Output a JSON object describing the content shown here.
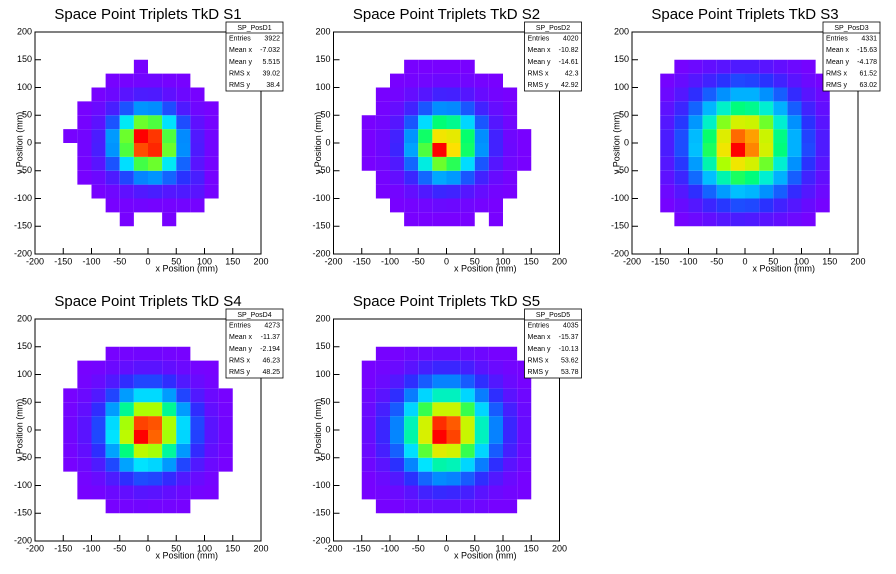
{
  "palette": [
    "#7a00ff",
    "#2a30ff",
    "#0090ff",
    "#00e8ff",
    "#00ff70",
    "#b0ff00",
    "#ffe000",
    "#ff0000"
  ],
  "chart_data": [
    {
      "type": "heatmap",
      "title": "Space Point Triplets TkD S1",
      "xlabel": "x Position (mm)",
      "ylabel": "y Position (mm)",
      "xlim": [
        -200,
        200
      ],
      "ylim": [
        -200,
        200
      ],
      "xticks": [
        -200,
        -150,
        -100,
        -50,
        0,
        50,
        100,
        150,
        200
      ],
      "yticks": [
        -200,
        -150,
        -100,
        -50,
        0,
        50,
        100,
        150,
        200
      ],
      "xbins": [
        -150,
        -125,
        -100,
        -75,
        -50,
        -25,
        0,
        25,
        50,
        75,
        100,
        125,
        150
      ],
      "ybins": [
        -150,
        -125,
        -100,
        -75,
        -50,
        -25,
        0,
        25,
        50,
        75,
        100,
        125,
        150
      ],
      "z": [
        [
          0,
          0,
          0,
          0,
          1,
          0,
          0,
          1,
          0,
          0,
          0,
          0
        ],
        [
          0,
          0,
          0,
          1,
          2,
          3,
          2,
          2,
          3,
          2,
          0,
          0
        ],
        [
          0,
          0,
          1,
          4,
          10,
          15,
          18,
          14,
          16,
          12,
          2,
          0
        ],
        [
          0,
          1,
          5,
          16,
          36,
          55,
          60,
          45,
          30,
          18,
          2,
          0
        ],
        [
          0,
          2,
          12,
          40,
          85,
          128,
          135,
          90,
          45,
          12,
          2,
          0
        ],
        [
          0,
          3,
          18,
          60,
          130,
          195,
          200,
          135,
          58,
          16,
          3,
          0
        ],
        [
          1,
          3,
          17,
          62,
          135,
          205,
          198,
          130,
          57,
          15,
          3,
          0
        ],
        [
          0,
          2,
          11,
          40,
          90,
          135,
          130,
          86,
          38,
          10,
          2,
          0
        ],
        [
          0,
          1,
          6,
          18,
          40,
          60,
          58,
          38,
          16,
          4,
          1,
          0
        ],
        [
          0,
          0,
          1,
          5,
          12,
          17,
          16,
          10,
          5,
          1,
          0,
          0
        ],
        [
          0,
          0,
          0,
          1,
          2,
          3,
          4,
          2,
          1,
          0,
          0,
          0
        ],
        [
          0,
          0,
          0,
          0,
          0,
          1,
          0,
          0,
          0,
          0,
          0,
          0
        ]
      ],
      "stats": {
        "title": "SP_PosD1",
        "rows": [
          {
            "label": "Entries",
            "value": 3922
          },
          {
            "label": "Mean x",
            "value": -7.032
          },
          {
            "label": "Mean y",
            "value": 5.515
          },
          {
            "label": "RMS x",
            "value": 39.02
          },
          {
            "label": "RMS y",
            "value": 38.4
          }
        ]
      }
    },
    {
      "type": "heatmap",
      "title": "Space Point Triplets TkD S2",
      "xlabel": "x Position (mm)",
      "ylabel": "y Position (mm)",
      "xlim": [
        -200,
        200
      ],
      "ylim": [
        -200,
        200
      ],
      "xticks": [
        -200,
        -150,
        -100,
        -50,
        0,
        50,
        100,
        150,
        200
      ],
      "yticks": [
        -200,
        -150,
        -100,
        -50,
        0,
        50,
        100,
        150,
        200
      ],
      "xbins": [
        -150,
        -125,
        -100,
        -75,
        -50,
        -25,
        0,
        25,
        50,
        75,
        100,
        125,
        150
      ],
      "ybins": [
        -150,
        -125,
        -100,
        -75,
        -50,
        -25,
        0,
        25,
        50,
        75,
        100,
        125,
        150
      ],
      "z": [
        [
          0,
          0,
          0,
          1,
          1,
          1,
          1,
          1,
          0,
          1,
          0,
          0
        ],
        [
          0,
          0,
          1,
          2,
          4,
          7,
          6,
          4,
          2,
          1,
          0,
          0
        ],
        [
          0,
          1,
          3,
          10,
          18,
          27,
          25,
          16,
          9,
          3,
          1,
          0
        ],
        [
          0,
          2,
          10,
          27,
          54,
          78,
          72,
          48,
          24,
          8,
          2,
          0
        ],
        [
          1,
          4,
          18,
          54,
          110,
          158,
          145,
          98,
          48,
          16,
          4,
          1
        ],
        [
          1,
          6,
          26,
          76,
          152,
          240,
          205,
          140,
          70,
          24,
          6,
          1
        ],
        [
          1,
          6,
          24,
          70,
          140,
          200,
          195,
          138,
          68,
          24,
          5,
          1
        ],
        [
          1,
          4,
          16,
          48,
          98,
          136,
          130,
          96,
          48,
          16,
          4,
          0
        ],
        [
          0,
          2,
          9,
          24,
          48,
          68,
          66,
          48,
          24,
          9,
          2,
          0
        ],
        [
          0,
          1,
          3,
          9,
          16,
          24,
          23,
          16,
          8,
          3,
          1,
          0
        ],
        [
          0,
          0,
          1,
          2,
          4,
          6,
          6,
          4,
          2,
          1,
          0,
          0
        ],
        [
          0,
          0,
          0,
          1,
          1,
          1,
          1,
          1,
          0,
          0,
          0,
          0
        ]
      ],
      "stats": {
        "title": "SP_PosD2",
        "rows": [
          {
            "label": "Entries",
            "value": 4020
          },
          {
            "label": "Mean x",
            "value": -10.82
          },
          {
            "label": "Mean y",
            "value": -14.61
          },
          {
            "label": "RMS x",
            "value": 42.3
          },
          {
            "label": "RMS y",
            "value": 42.92
          }
        ]
      }
    },
    {
      "type": "heatmap",
      "title": "Space Point Triplets TkD S3",
      "xlabel": "x Position (mm)",
      "ylabel": "y Position (mm)",
      "xlim": [
        -200,
        200
      ],
      "ylim": [
        -200,
        200
      ],
      "xticks": [
        -200,
        -150,
        -100,
        -50,
        0,
        50,
        100,
        150,
        200
      ],
      "yticks": [
        -200,
        -150,
        -100,
        -50,
        0,
        50,
        100,
        150,
        200
      ],
      "xbins": [
        -150,
        -125,
        -100,
        -75,
        -50,
        -25,
        0,
        25,
        50,
        75,
        100,
        125,
        150
      ],
      "ybins": [
        -150,
        -125,
        -100,
        -75,
        -50,
        -25,
        0,
        25,
        50,
        75,
        100,
        125,
        150
      ],
      "z": [
        [
          0,
          1,
          3,
          5,
          8,
          10,
          9,
          7,
          5,
          3,
          1,
          0
        ],
        [
          1,
          4,
          8,
          13,
          18,
          22,
          21,
          17,
          12,
          8,
          4,
          1
        ],
        [
          3,
          8,
          16,
          26,
          36,
          43,
          41,
          34,
          25,
          15,
          8,
          3
        ],
        [
          6,
          13,
          27,
          43,
          60,
          70,
          66,
          56,
          40,
          25,
          12,
          5
        ],
        [
          8,
          18,
          36,
          60,
          84,
          98,
          92,
          78,
          56,
          34,
          17,
          7
        ],
        [
          10,
          22,
          43,
          70,
          98,
          118,
          108,
          92,
          66,
          40,
          21,
          9
        ],
        [
          10,
          22,
          42,
          68,
          94,
          110,
          106,
          90,
          65,
          40,
          20,
          9
        ],
        [
          8,
          18,
          35,
          57,
          80,
          92,
          90,
          78,
          56,
          34,
          17,
          7
        ],
        [
          6,
          13,
          26,
          41,
          57,
          66,
          64,
          56,
          40,
          25,
          12,
          5
        ],
        [
          3,
          8,
          16,
          25,
          34,
          40,
          40,
          34,
          25,
          15,
          7,
          3
        ],
        [
          1,
          4,
          8,
          12,
          17,
          21,
          20,
          17,
          12,
          7,
          3,
          1
        ],
        [
          0,
          1,
          3,
          5,
          7,
          9,
          9,
          7,
          5,
          3,
          1,
          0
        ]
      ],
      "stats": {
        "title": "SP_PosD3",
        "rows": [
          {
            "label": "Entries",
            "value": 4331
          },
          {
            "label": "Mean x",
            "value": -15.63
          },
          {
            "label": "Mean y",
            "value": -4.178
          },
          {
            "label": "RMS x",
            "value": 61.52
          },
          {
            "label": "RMS y",
            "value": 63.02
          }
        ]
      }
    },
    {
      "type": "heatmap",
      "title": "Space Point Triplets TkD S4",
      "xlabel": "x Position (mm)",
      "ylabel": "y Position (mm)",
      "xlim": [
        -200,
        200
      ],
      "ylim": [
        -200,
        200
      ],
      "xticks": [
        -200,
        -150,
        -100,
        -50,
        0,
        50,
        100,
        150,
        200
      ],
      "yticks": [
        -200,
        -150,
        -100,
        -50,
        0,
        50,
        100,
        150,
        200
      ],
      "xbins": [
        -150,
        -125,
        -100,
        -75,
        -50,
        -25,
        0,
        25,
        50,
        75,
        100,
        125,
        150
      ],
      "ybins": [
        -150,
        -125,
        -100,
        -75,
        -50,
        -25,
        0,
        25,
        50,
        75,
        100,
        125,
        150
      ],
      "z": [
        [
          0,
          0,
          0,
          1,
          2,
          3,
          2,
          2,
          1,
          0,
          0,
          0
        ],
        [
          0,
          1,
          2,
          5,
          8,
          12,
          11,
          8,
          5,
          2,
          1,
          0
        ],
        [
          0,
          2,
          6,
          15,
          26,
          35,
          33,
          24,
          14,
          6,
          2,
          0
        ],
        [
          1,
          5,
          15,
          34,
          60,
          80,
          76,
          57,
          33,
          14,
          5,
          1
        ],
        [
          2,
          8,
          26,
          60,
          106,
          140,
          134,
          100,
          57,
          24,
          8,
          2
        ],
        [
          3,
          11,
          34,
          80,
          140,
          190,
          178,
          134,
          76,
          32,
          11,
          3
        ],
        [
          3,
          11,
          33,
          77,
          134,
          182,
          180,
          135,
          77,
          33,
          11,
          3
        ],
        [
          2,
          8,
          25,
          58,
          102,
          135,
          135,
          102,
          58,
          25,
          8,
          2
        ],
        [
          1,
          5,
          14,
          33,
          58,
          77,
          77,
          58,
          33,
          14,
          5,
          1
        ],
        [
          0,
          2,
          6,
          14,
          25,
          33,
          33,
          25,
          14,
          6,
          2,
          0
        ],
        [
          0,
          1,
          2,
          5,
          8,
          11,
          11,
          8,
          5,
          2,
          1,
          0
        ],
        [
          0,
          0,
          0,
          1,
          2,
          3,
          3,
          2,
          1,
          0,
          0,
          0
        ]
      ],
      "stats": {
        "title": "SP_PosD4",
        "rows": [
          {
            "label": "Entries",
            "value": 4273
          },
          {
            "label": "Mean x",
            "value": -11.37
          },
          {
            "label": "Mean y",
            "value": -2.194
          },
          {
            "label": "RMS x",
            "value": 46.23
          },
          {
            "label": "RMS y",
            "value": 48.25
          }
        ]
      }
    },
    {
      "type": "heatmap",
      "title": "Space Point Triplets TkD S5",
      "xlabel": "x Position (mm)",
      "ylabel": "y Position (mm)",
      "xlim": [
        -200,
        200
      ],
      "ylim": [
        -200,
        200
      ],
      "xticks": [
        -200,
        -150,
        -100,
        -50,
        0,
        50,
        100,
        150,
        200
      ],
      "yticks": [
        -200,
        -150,
        -100,
        -50,
        0,
        50,
        100,
        150,
        200
      ],
      "xbins": [
        -150,
        -125,
        -100,
        -75,
        -50,
        -25,
        0,
        25,
        50,
        75,
        100,
        125,
        150
      ],
      "ybins": [
        -150,
        -125,
        -100,
        -75,
        -50,
        -25,
        0,
        25,
        50,
        75,
        100,
        125,
        150
      ],
      "z": [
        [
          0,
          1,
          1,
          3,
          4,
          5,
          5,
          4,
          3,
          1,
          1,
          0
        ],
        [
          1,
          2,
          4,
          8,
          14,
          17,
          16,
          13,
          8,
          4,
          2,
          1
        ],
        [
          1,
          4,
          10,
          20,
          31,
          39,
          37,
          29,
          19,
          10,
          4,
          1
        ],
        [
          3,
          8,
          20,
          38,
          59,
          72,
          70,
          56,
          36,
          19,
          8,
          3
        ],
        [
          4,
          13,
          30,
          58,
          90,
          112,
          108,
          86,
          56,
          29,
          13,
          4
        ],
        [
          5,
          16,
          38,
          72,
          110,
          140,
          134,
          106,
          69,
          37,
          16,
          5
        ],
        [
          5,
          16,
          37,
          70,
          108,
          136,
          132,
          106,
          69,
          37,
          16,
          5
        ],
        [
          4,
          13,
          29,
          56,
          86,
          106,
          106,
          86,
          56,
          29,
          13,
          4
        ],
        [
          3,
          8,
          19,
          36,
          56,
          69,
          69,
          56,
          36,
          19,
          8,
          3
        ],
        [
          1,
          4,
          10,
          19,
          29,
          37,
          37,
          29,
          19,
          10,
          4,
          1
        ],
        [
          1,
          2,
          4,
          8,
          13,
          16,
          16,
          13,
          8,
          4,
          2,
          1
        ],
        [
          0,
          1,
          1,
          3,
          4,
          5,
          5,
          4,
          3,
          1,
          1,
          0
        ]
      ],
      "stats": {
        "title": "SP_PosD5",
        "rows": [
          {
            "label": "Entries",
            "value": 4035
          },
          {
            "label": "Mean x",
            "value": -15.37
          },
          {
            "label": "Mean y",
            "value": -10.13
          },
          {
            "label": "RMS x",
            "value": 53.62
          },
          {
            "label": "RMS y",
            "value": 53.78
          }
        ]
      }
    }
  ]
}
